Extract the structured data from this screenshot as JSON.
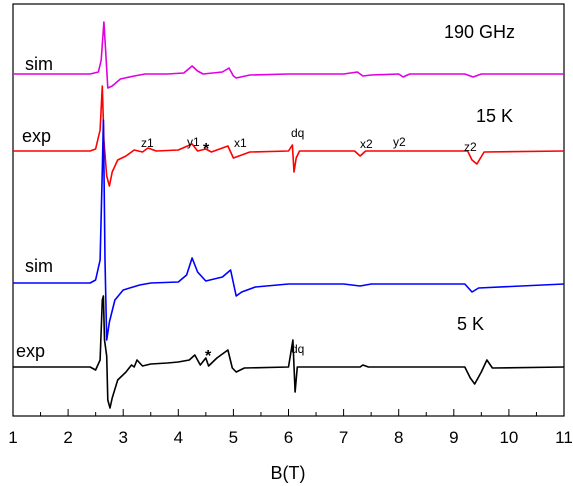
{
  "chart_data": {
    "type": "line",
    "xlabel": "B(T)",
    "xlim": [
      1,
      11
    ],
    "x_ticks": [
      "1",
      "2",
      "3",
      "4",
      "5",
      "6",
      "7",
      "8",
      "9",
      "10",
      "11"
    ],
    "yticks_shown": false,
    "grid": false,
    "annotations": {
      "frequency": "190 GHz",
      "temp_15": "15 K",
      "temp_5": "5 K",
      "sim_top": "sim",
      "exp_top": "exp",
      "sim_bottom": "sim",
      "exp_bottom": "exp",
      "z1": "z1",
      "y1": "y1",
      "star_top": "*",
      "x1": "x1",
      "dq_top": "dq",
      "x2": "x2",
      "y2": "y2",
      "z2": "z2",
      "star_bottom": "*",
      "dq_bottom": "dq"
    },
    "series": [
      {
        "color": "#e000e0",
        "points": [
          [
            1,
            74
          ],
          [
            2.4,
            74
          ],
          [
            2.55,
            72
          ],
          [
            2.6,
            60
          ],
          [
            2.65,
            22
          ],
          [
            2.68,
            50
          ],
          [
            2.72,
            88
          ],
          [
            2.8,
            86
          ],
          [
            2.95,
            79
          ],
          [
            3.2,
            76
          ],
          [
            3.4,
            74
          ],
          [
            3.8,
            74
          ],
          [
            4.1,
            73
          ],
          [
            4.25,
            66
          ],
          [
            4.35,
            71
          ],
          [
            4.45,
            74
          ],
          [
            4.8,
            72
          ],
          [
            4.92,
            68
          ],
          [
            5.0,
            76
          ],
          [
            5.05,
            78
          ],
          [
            5.3,
            75
          ],
          [
            6,
            74
          ],
          [
            7,
            74
          ],
          [
            7.25,
            72
          ],
          [
            7.35,
            76
          ],
          [
            7.5,
            75
          ],
          [
            8,
            74
          ],
          [
            8.08,
            77
          ],
          [
            8.2,
            74
          ],
          [
            9.2,
            74
          ],
          [
            9.35,
            77
          ],
          [
            9.5,
            74
          ],
          [
            11,
            74
          ]
        ]
      },
      {
        "color": "#ff0000",
        "points": [
          [
            1,
            151
          ],
          [
            2.4,
            151
          ],
          [
            2.5,
            149
          ],
          [
            2.58,
            130
          ],
          [
            2.62,
            86
          ],
          [
            2.65,
            140
          ],
          [
            2.7,
            176
          ],
          [
            2.75,
            186
          ],
          [
            2.8,
            172
          ],
          [
            2.9,
            160
          ],
          [
            3.05,
            156
          ],
          [
            3.2,
            150
          ],
          [
            3.35,
            152
          ],
          [
            3.45,
            148
          ],
          [
            3.6,
            151
          ],
          [
            4.0,
            150
          ],
          [
            4.25,
            144
          ],
          [
            4.35,
            151
          ],
          [
            4.5,
            149
          ],
          [
            4.6,
            152
          ],
          [
            4.9,
            146
          ],
          [
            5.0,
            158
          ],
          [
            5.1,
            156
          ],
          [
            5.3,
            152
          ],
          [
            6.0,
            151
          ],
          [
            6.07,
            145
          ],
          [
            6.1,
            172
          ],
          [
            6.14,
            158
          ],
          [
            6.2,
            151
          ],
          [
            7.2,
            151
          ],
          [
            7.3,
            156
          ],
          [
            7.4,
            151
          ],
          [
            8.0,
            151
          ],
          [
            9.25,
            151
          ],
          [
            9.33,
            160
          ],
          [
            9.42,
            164
          ],
          [
            9.55,
            152
          ],
          [
            11,
            151
          ]
        ]
      },
      {
        "color": "#0000ff",
        "points": [
          [
            1,
            283
          ],
          [
            2.4,
            283
          ],
          [
            2.5,
            280
          ],
          [
            2.58,
            260
          ],
          [
            2.62,
            170
          ],
          [
            2.64,
            120
          ],
          [
            2.67,
            260
          ],
          [
            2.7,
            340
          ],
          [
            2.75,
            322
          ],
          [
            2.85,
            300
          ],
          [
            3.0,
            290
          ],
          [
            3.3,
            285
          ],
          [
            3.5,
            283
          ],
          [
            4.0,
            282
          ],
          [
            4.15,
            275
          ],
          [
            4.25,
            258
          ],
          [
            4.35,
            272
          ],
          [
            4.5,
            281
          ],
          [
            4.8,
            277
          ],
          [
            4.95,
            270
          ],
          [
            5.05,
            296
          ],
          [
            5.15,
            292
          ],
          [
            5.4,
            287
          ],
          [
            6,
            284
          ],
          [
            7,
            284
          ],
          [
            7.3,
            286
          ],
          [
            7.5,
            284
          ],
          [
            9.2,
            284
          ],
          [
            9.33,
            292
          ],
          [
            9.45,
            288
          ],
          [
            11,
            284
          ]
        ]
      },
      {
        "color": "#000000",
        "points": [
          [
            1,
            367
          ],
          [
            2.4,
            367
          ],
          [
            2.5,
            370
          ],
          [
            2.58,
            360
          ],
          [
            2.62,
            300
          ],
          [
            2.64,
            296
          ],
          [
            2.66,
            340
          ],
          [
            2.7,
            356
          ],
          [
            2.72,
            400
          ],
          [
            2.76,
            408
          ],
          [
            2.8,
            398
          ],
          [
            2.9,
            380
          ],
          [
            3.05,
            372
          ],
          [
            3.15,
            365
          ],
          [
            3.2,
            367
          ],
          [
            3.25,
            360
          ],
          [
            3.35,
            366
          ],
          [
            3.5,
            364
          ],
          [
            3.8,
            363
          ],
          [
            4.0,
            362
          ],
          [
            4.2,
            360
          ],
          [
            4.3,
            355
          ],
          [
            4.4,
            365
          ],
          [
            4.5,
            358
          ],
          [
            4.55,
            366
          ],
          [
            4.7,
            358
          ],
          [
            4.9,
            350
          ],
          [
            4.98,
            368
          ],
          [
            5.05,
            372
          ],
          [
            5.2,
            368
          ],
          [
            6.0,
            367
          ],
          [
            6.08,
            340
          ],
          [
            6.12,
            392
          ],
          [
            6.16,
            367
          ],
          [
            7.3,
            367
          ],
          [
            7.35,
            365
          ],
          [
            7.45,
            367
          ],
          [
            9.2,
            367
          ],
          [
            9.3,
            378
          ],
          [
            9.38,
            384
          ],
          [
            9.5,
            372
          ],
          [
            9.6,
            360
          ],
          [
            9.7,
            368
          ],
          [
            11,
            367
          ]
        ]
      }
    ]
  }
}
